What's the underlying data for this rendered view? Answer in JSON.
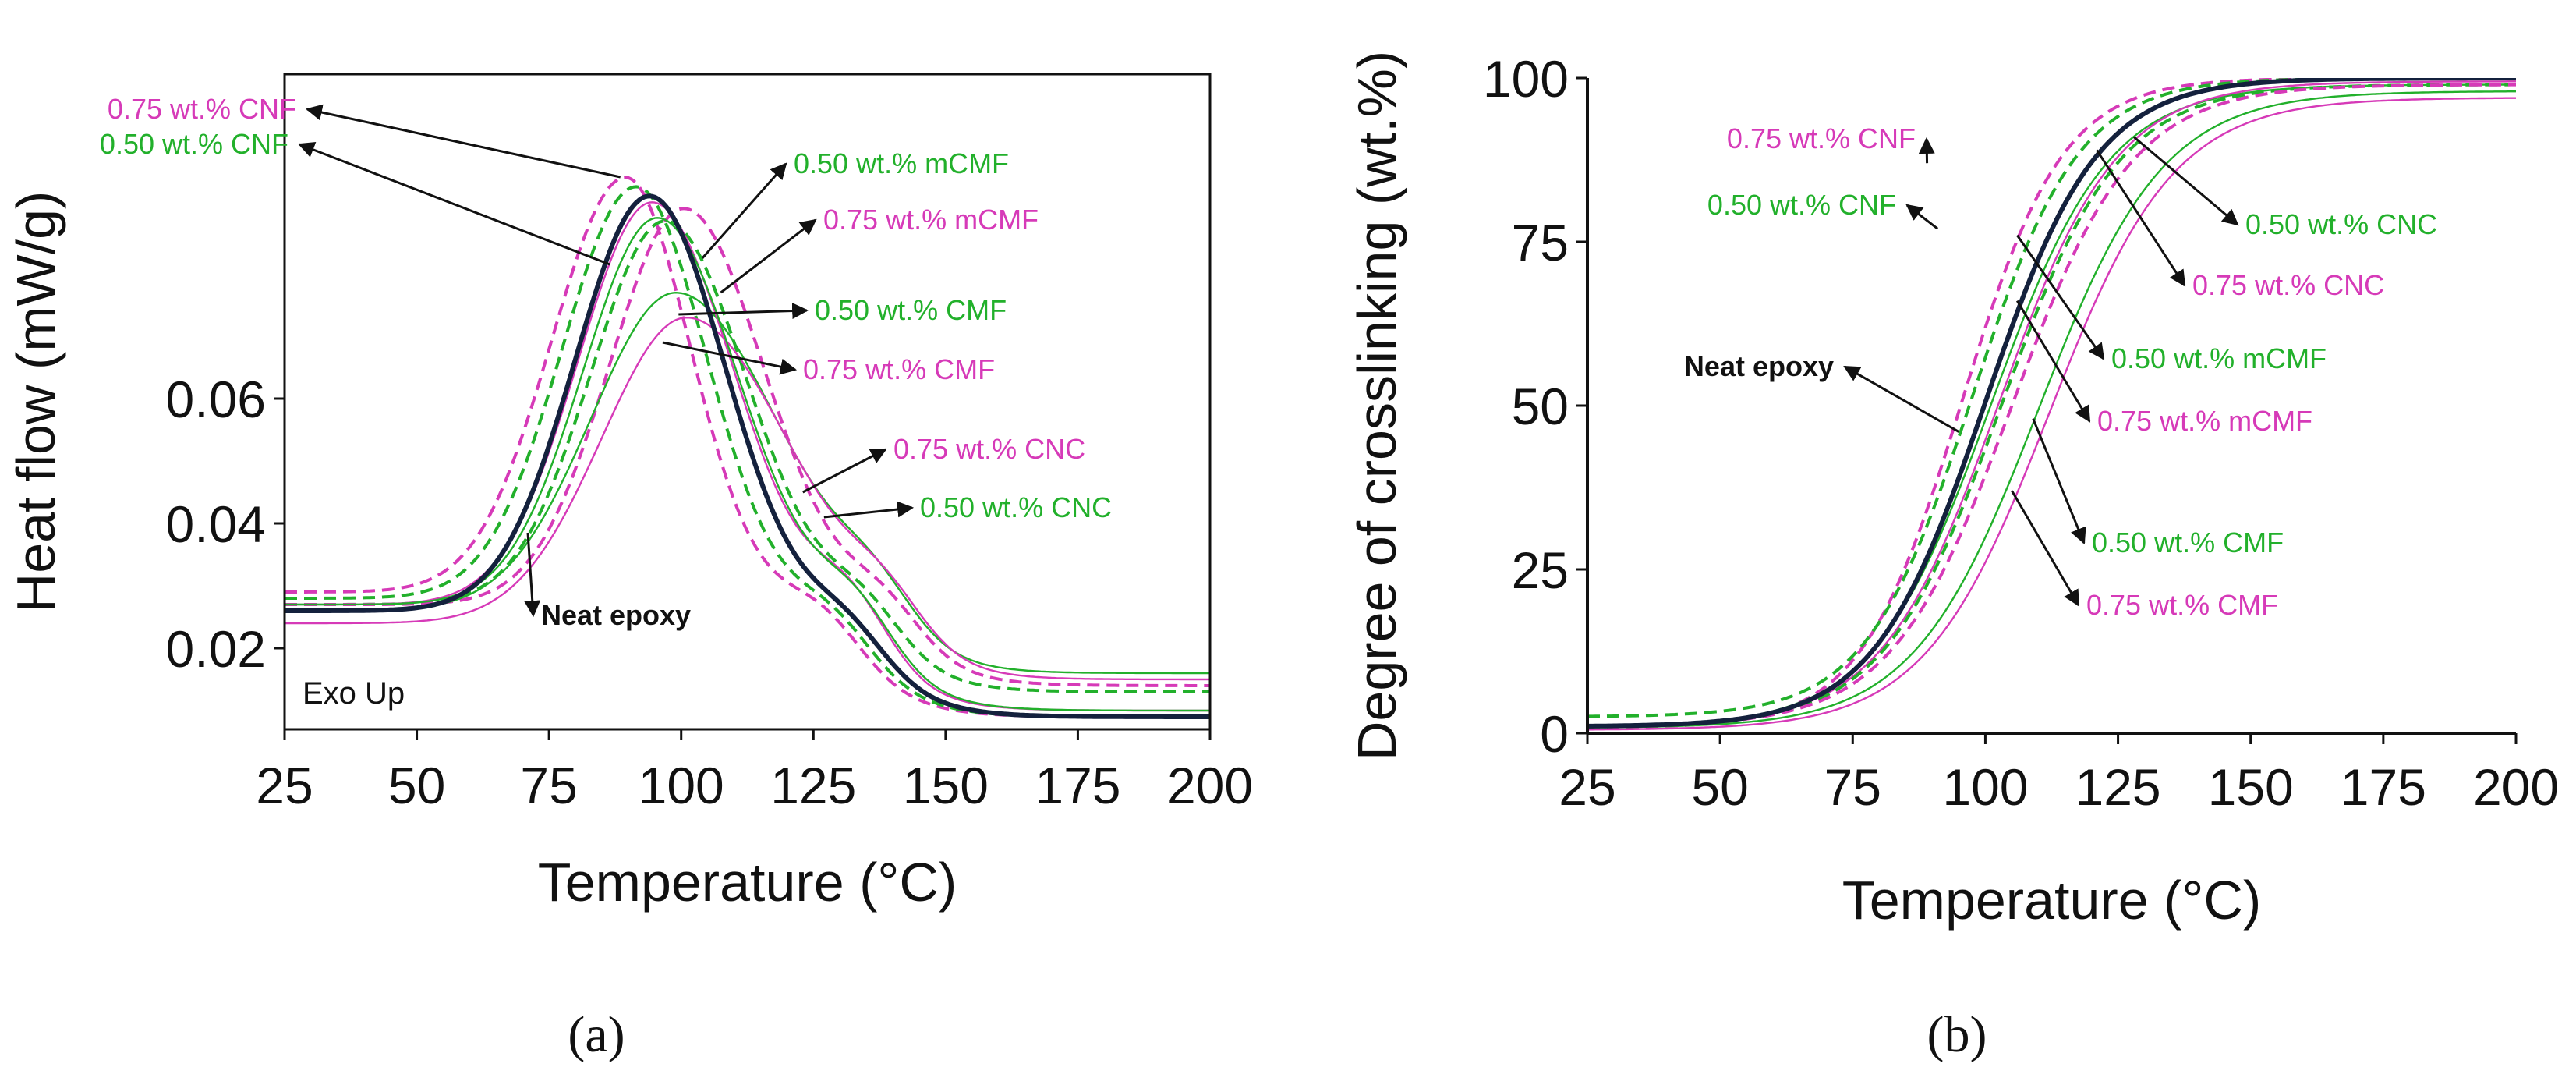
{
  "colors": {
    "neat": "#14213d",
    "green": "#22b02b",
    "magenta": "#d63ab8",
    "arrow": "#111111"
  },
  "panel_labels": {
    "a": "(a)",
    "b": "(b)"
  },
  "chart_data": [
    {
      "id": "a",
      "type": "line",
      "xlabel": "Temperature (°C)",
      "ylabel": "Heat flow (mW/g)",
      "xlim": [
        25,
        200
      ],
      "ylim": [
        0.007,
        0.112
      ],
      "xticks": [
        "25",
        "50",
        "75",
        "100",
        "125",
        "150",
        "175",
        "200"
      ],
      "yticks": [
        "0.02",
        "0.04",
        "0.06"
      ],
      "corner_text": "Exo Up",
      "legend": "none",
      "series": [
        {
          "name": "Neat epoxy",
          "style": "neat",
          "base": 0.026,
          "peak": 0.0925,
          "peak_x": 94,
          "wl": 14,
          "wr": 14,
          "tail": 0.009,
          "shoulder": 0.004
        },
        {
          "name": "0.75 wt.% CNF",
          "style": "magenta-dashed",
          "base": 0.029,
          "peak": 0.0955,
          "peak_x": 89.5,
          "wl": 14,
          "wr": 12,
          "tail": 0.009,
          "shoulder": 0.004
        },
        {
          "name": "0.50 wt.% CNF",
          "style": "green-dashed",
          "base": 0.028,
          "peak": 0.094,
          "peak_x": 91.5,
          "wl": 14,
          "wr": 13,
          "tail": 0.009,
          "shoulder": 0.004
        },
        {
          "name": "0.50 wt.% mCMF",
          "style": "green-dashed",
          "base": 0.027,
          "peak": 0.0885,
          "peak_x": 97,
          "wl": 14,
          "wr": 15,
          "tail": 0.013,
          "shoulder": 0.005
        },
        {
          "name": "0.75 wt.% mCMF",
          "style": "magenta-dashed",
          "base": 0.027,
          "peak": 0.0905,
          "peak_x": 100.5,
          "wl": 14,
          "wr": 15,
          "tail": 0.014,
          "shoulder": 0.005
        },
        {
          "name": "0.50 wt.% CMF",
          "style": "green-solid",
          "base": 0.026,
          "peak": 0.077,
          "peak_x": 99,
          "wl": 16,
          "wr": 19,
          "tail": 0.016,
          "shoulder": 0.005
        },
        {
          "name": "0.75 wt.% CMF",
          "style": "magenta-solid",
          "base": 0.024,
          "peak": 0.073,
          "peak_x": 101,
          "wl": 16,
          "wr": 19,
          "tail": 0.015,
          "shoulder": 0.005
        },
        {
          "name": "0.75 wt.% CNC",
          "style": "magenta-solid",
          "base": 0.027,
          "peak": 0.0915,
          "peak_x": 94.5,
          "wl": 14,
          "wr": 15,
          "tail": 0.01,
          "shoulder": 0.007
        },
        {
          "name": "0.50 wt.% CNC",
          "style": "green-solid",
          "base": 0.027,
          "peak": 0.089,
          "peak_x": 95.5,
          "wl": 14,
          "wr": 15,
          "tail": 0.01,
          "shoulder": 0.006
        }
      ],
      "annotations": [
        {
          "text": "0.75 wt.% CNF",
          "color": "magenta",
          "target": [
            88.5,
            0.0955
          ],
          "anchor": "end"
        },
        {
          "text": "0.50 wt.% CNF",
          "color": "green",
          "target": [
            86.5,
            0.0815
          ],
          "anchor": "end"
        },
        {
          "text": "0.50 wt.% mCMF",
          "color": "green",
          "target": [
            104,
            0.0825
          ],
          "anchor": "start"
        },
        {
          "text": "0.75 wt.% mCMF",
          "color": "magenta",
          "target": [
            107.5,
            0.077
          ],
          "anchor": "start"
        },
        {
          "text": "0.50 wt.% CMF",
          "color": "green",
          "target": [
            99.5,
            0.0735
          ],
          "anchor": "start"
        },
        {
          "text": "0.75 wt.% CMF",
          "color": "magenta",
          "target": [
            96.5,
            0.069
          ],
          "anchor": "start"
        },
        {
          "text": "0.75 wt.% CNC",
          "color": "magenta",
          "target": [
            123,
            0.045
          ],
          "anchor": "start"
        },
        {
          "text": "0.50 wt.% CNC",
          "color": "green",
          "target": [
            127,
            0.041
          ],
          "anchor": "start"
        },
        {
          "text": "Neat epoxy",
          "color": "neat",
          "target": [
            71,
            0.0385
          ],
          "anchor": "start",
          "bold": true
        }
      ]
    },
    {
      "id": "b",
      "type": "line",
      "xlabel": "Temperature (°C)",
      "ylabel": "Degree of crosslinking (wt.%)",
      "xlim": [
        25,
        200
      ],
      "ylim": [
        0,
        100
      ],
      "xticks": [
        "25",
        "50",
        "75",
        "100",
        "125",
        "150",
        "175",
        "200"
      ],
      "yticks": [
        "0",
        "25",
        "50",
        "75",
        "100"
      ],
      "legend": "none",
      "series": [
        {
          "name": "Neat epoxy",
          "style": "neat",
          "low": 1,
          "mid_x": 100,
          "k": 0.095,
          "high": 100
        },
        {
          "name": "0.75 wt.% CNF",
          "style": "magenta-dashed",
          "low": 0.8,
          "mid_x": 95.5,
          "k": 0.105,
          "high": 100
        },
        {
          "name": "0.50 wt.% CNF",
          "style": "green-dashed",
          "low": 2.5,
          "mid_x": 97.5,
          "k": 0.1,
          "high": 100
        },
        {
          "name": "0.50 wt.% CNC",
          "style": "green-solid",
          "low": 1,
          "mid_x": 101,
          "k": 0.09,
          "high": 99
        },
        {
          "name": "0.75 wt.% CNC",
          "style": "magenta-solid",
          "low": 1,
          "mid_x": 102.5,
          "k": 0.09,
          "high": 99.5
        },
        {
          "name": "0.50 wt.% mCMF",
          "style": "green-dashed",
          "low": 1,
          "mid_x": 103,
          "k": 0.09,
          "high": 99
        },
        {
          "name": "0.75 wt.% mCMF",
          "style": "magenta-dashed",
          "low": 1,
          "mid_x": 105,
          "k": 0.088,
          "high": 99
        },
        {
          "name": "0.50 wt.% CMF",
          "style": "green-solid",
          "low": 0.8,
          "mid_x": 110,
          "k": 0.085,
          "high": 98
        },
        {
          "name": "0.75 wt.% CMF",
          "style": "magenta-solid",
          "low": 0.5,
          "mid_x": 112,
          "k": 0.085,
          "high": 97
        }
      ],
      "annotations": [
        {
          "text": "0.75 wt.% CNF",
          "color": "magenta",
          "target": [
            89,
            87
          ],
          "anchor": "end"
        },
        {
          "text": "0.50 wt.% CNF",
          "color": "green",
          "target": [
            91,
            77
          ],
          "anchor": "end"
        },
        {
          "text": "0.50 wt.% CNC",
          "color": "green",
          "target": [
            128,
            91
          ],
          "anchor": "start"
        },
        {
          "text": "0.75 wt.% CNC",
          "color": "magenta",
          "target": [
            121,
            89
          ],
          "anchor": "start"
        },
        {
          "text": "0.50 wt.% mCMF",
          "color": "green",
          "target": [
            106,
            76
          ],
          "anchor": "start"
        },
        {
          "text": "0.75 wt.% mCMF",
          "color": "magenta",
          "target": [
            106,
            66
          ],
          "anchor": "start"
        },
        {
          "text": "0.50 wt.% CMF",
          "color": "green",
          "target": [
            109,
            48
          ],
          "anchor": "start"
        },
        {
          "text": "0.75 wt.% CMF",
          "color": "magenta",
          "target": [
            105,
            37
          ],
          "anchor": "start"
        },
        {
          "text": "Neat epoxy",
          "color": "neat",
          "target": [
            95,
            46
          ],
          "anchor": "end",
          "bold": true
        }
      ]
    }
  ]
}
